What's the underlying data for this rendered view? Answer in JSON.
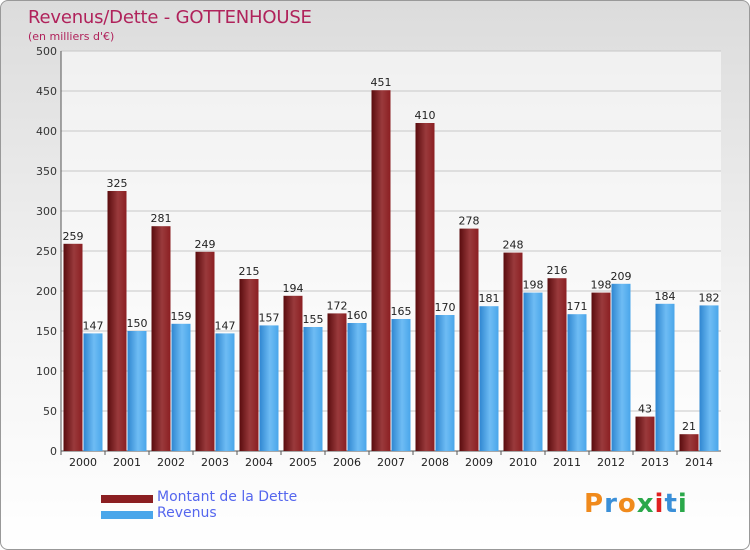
{
  "chart_data": {
    "type": "bar",
    "title": "Revenus/Dette - GOTTENHOUSE",
    "subtitle": "(en milliers d'€)",
    "categories": [
      "2000",
      "2001",
      "2002",
      "2003",
      "2004",
      "2005",
      "2006",
      "2007",
      "2008",
      "2009",
      "2010",
      "2011",
      "2012",
      "2013",
      "2014"
    ],
    "series": [
      {
        "name": "Montant de la Dette",
        "color": "#8b1f22",
        "values": [
          259,
          325,
          281,
          249,
          215,
          194,
          172,
          451,
          410,
          278,
          248,
          216,
          198,
          43,
          21
        ]
      },
      {
        "name": "Revenus",
        "color": "#4aa6ea",
        "values": [
          147,
          150,
          159,
          147,
          157,
          155,
          160,
          165,
          170,
          181,
          198,
          171,
          209,
          184,
          182
        ]
      }
    ],
    "ylim": [
      0,
      500
    ],
    "yticks": [
      0,
      50,
      100,
      150,
      200,
      250,
      300,
      350,
      400,
      450,
      500
    ],
    "grid": true,
    "legend": "bottom-left"
  },
  "logo": {
    "text": "Proxiti",
    "colors": [
      "#f08a1c",
      "#3a8fd8",
      "#f08a1c",
      "#2aa84a",
      "#e02020",
      "#3a8fd8",
      "#2aa84a"
    ]
  }
}
